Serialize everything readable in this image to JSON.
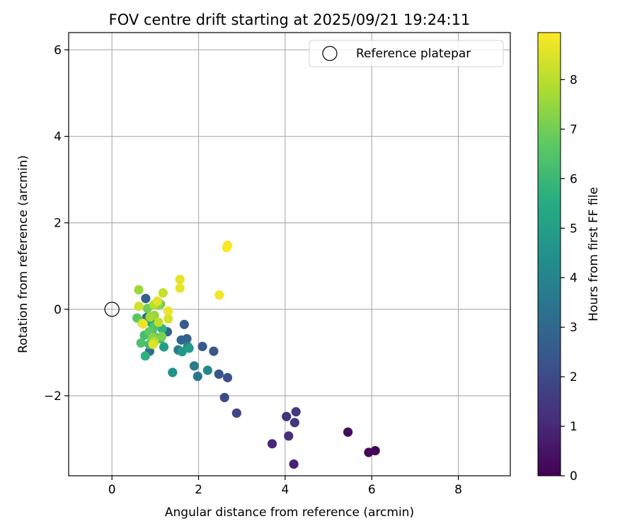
{
  "chart_data": {
    "type": "scatter",
    "title": "FOV centre drift starting at 2025/09/21 19:24:11",
    "xlabel": "Angular distance from reference (arcmin)",
    "ylabel": "Rotation from reference (arcmin)",
    "xlim": [
      -1.0,
      9.2
    ],
    "ylim": [
      -3.85,
      6.4
    ],
    "xticks": [
      0,
      2,
      4,
      6,
      8
    ],
    "xtick_labels": [
      "0",
      "2",
      "4",
      "6",
      "8"
    ],
    "yticks": [
      -2,
      0,
      2,
      4,
      6
    ],
    "ytick_labels": [
      "−2",
      "0",
      "2",
      "4",
      "6"
    ],
    "grid": true,
    "legend": {
      "label": "Reference platepar",
      "placement": "top-right",
      "marker": "open-circle"
    },
    "reference_point": {
      "x": 0,
      "y": 0
    },
    "colorbar": {
      "label": "Hours from first FF file",
      "colormap": "viridis",
      "range": [
        0,
        8.95
      ],
      "ticks": [
        0,
        1,
        2,
        3,
        4,
        5,
        6,
        7,
        8
      ],
      "tick_labels": [
        "0",
        "1",
        "2",
        "3",
        "4",
        "5",
        "6",
        "7",
        "8"
      ]
    },
    "points": [
      {
        "x": 6.08,
        "y": -3.27,
        "c": 0.05
      },
      {
        "x": 5.93,
        "y": -3.31,
        "c": 0.15
      },
      {
        "x": 5.45,
        "y": -2.84,
        "c": 0.25
      },
      {
        "x": 4.2,
        "y": -3.58,
        "c": 0.85
      },
      {
        "x": 3.7,
        "y": -3.11,
        "c": 1.0
      },
      {
        "x": 4.08,
        "y": -2.93,
        "c": 1.15
      },
      {
        "x": 4.03,
        "y": -2.48,
        "c": 1.3
      },
      {
        "x": 4.22,
        "y": -2.62,
        "c": 1.4
      },
      {
        "x": 4.25,
        "y": -2.37,
        "c": 1.5
      },
      {
        "x": 2.88,
        "y": -2.4,
        "c": 1.95
      },
      {
        "x": 2.6,
        "y": -2.04,
        "c": 2.05
      },
      {
        "x": 2.67,
        "y": -1.58,
        "c": 2.2
      },
      {
        "x": 2.47,
        "y": -1.5,
        "c": 2.3
      },
      {
        "x": 2.35,
        "y": -0.97,
        "c": 2.4
      },
      {
        "x": 2.09,
        "y": -0.86,
        "c": 2.5
      },
      {
        "x": 1.67,
        "y": -0.35,
        "c": 2.6
      },
      {
        "x": 0.78,
        "y": 0.25,
        "c": 2.7
      },
      {
        "x": 1.73,
        "y": -0.68,
        "c": 2.8
      },
      {
        "x": 1.6,
        "y": -0.71,
        "c": 2.9
      },
      {
        "x": 1.28,
        "y": -0.52,
        "c": 3.0
      },
      {
        "x": 0.8,
        "y": -0.19,
        "c": 3.1
      },
      {
        "x": 0.87,
        "y": -0.97,
        "c": 3.2
      },
      {
        "x": 1.98,
        "y": -1.55,
        "c": 3.5
      },
      {
        "x": 1.53,
        "y": -0.94,
        "c": 3.6
      },
      {
        "x": 1.9,
        "y": -1.31,
        "c": 3.7
      },
      {
        "x": 1.75,
        "y": -0.86,
        "c": 3.9
      },
      {
        "x": 2.21,
        "y": -1.41,
        "c": 4.2
      },
      {
        "x": 1.4,
        "y": -1.46,
        "c": 4.5
      },
      {
        "x": 1.62,
        "y": -0.98,
        "c": 4.7
      },
      {
        "x": 1.78,
        "y": -0.9,
        "c": 4.9
      },
      {
        "x": 1.2,
        "y": -0.87,
        "c": 5.0
      },
      {
        "x": 0.9,
        "y": -0.3,
        "c": 5.3
      },
      {
        "x": 1.02,
        "y": -0.66,
        "c": 5.4
      },
      {
        "x": 0.95,
        "y": -0.44,
        "c": 5.6
      },
      {
        "x": 0.77,
        "y": -1.08,
        "c": 5.7
      },
      {
        "x": 1.16,
        "y": -0.45,
        "c": 5.8
      },
      {
        "x": 1.12,
        "y": -0.68,
        "c": 6.0
      },
      {
        "x": 0.86,
        "y": -0.81,
        "c": 6.1
      },
      {
        "x": 0.75,
        "y": -0.6,
        "c": 6.2
      },
      {
        "x": 0.92,
        "y": -0.55,
        "c": 6.3
      },
      {
        "x": 0.67,
        "y": -0.78,
        "c": 6.4
      },
      {
        "x": 0.97,
        "y": -0.4,
        "c": 6.5
      },
      {
        "x": 0.58,
        "y": -0.2,
        "c": 6.6
      },
      {
        "x": 0.86,
        "y": -0.52,
        "c": 6.7
      },
      {
        "x": 1.12,
        "y": 0.12,
        "c": 6.8
      },
      {
        "x": 0.92,
        "y": -0.74,
        "c": 6.9
      },
      {
        "x": 0.82,
        "y": 0.02,
        "c": 7.0
      },
      {
        "x": 1.15,
        "y": -0.63,
        "c": 7.1
      },
      {
        "x": 0.95,
        "y": -0.65,
        "c": 7.3
      },
      {
        "x": 1.07,
        "y": 0.1,
        "c": 7.4
      },
      {
        "x": 0.98,
        "y": -0.14,
        "c": 7.5
      },
      {
        "x": 0.62,
        "y": 0.45,
        "c": 7.6
      },
      {
        "x": 0.88,
        "y": -0.18,
        "c": 7.7
      },
      {
        "x": 0.7,
        "y": -0.32,
        "c": 7.8
      },
      {
        "x": 0.98,
        "y": -0.75,
        "c": 7.9
      },
      {
        "x": 0.97,
        "y": 0.11,
        "c": 8.0
      },
      {
        "x": 1.08,
        "y": -0.3,
        "c": 8.1
      },
      {
        "x": 1.18,
        "y": 0.38,
        "c": 8.2
      },
      {
        "x": 0.62,
        "y": 0.07,
        "c": 8.3
      },
      {
        "x": 1.3,
        "y": -0.22,
        "c": 8.4
      },
      {
        "x": 0.95,
        "y": -0.81,
        "c": 8.5
      },
      {
        "x": 1.05,
        "y": 0.19,
        "c": 8.55
      },
      {
        "x": 1.57,
        "y": 0.69,
        "c": 8.6
      },
      {
        "x": 1.57,
        "y": 0.49,
        "c": 8.65
      },
      {
        "x": 1.3,
        "y": -0.04,
        "c": 8.7
      },
      {
        "x": 0.72,
        "y": -0.34,
        "c": 8.75
      },
      {
        "x": 2.48,
        "y": 0.33,
        "c": 8.8
      },
      {
        "x": 2.67,
        "y": 1.48,
        "c": 8.85
      },
      {
        "x": 2.65,
        "y": 1.43,
        "c": 8.9
      }
    ]
  }
}
